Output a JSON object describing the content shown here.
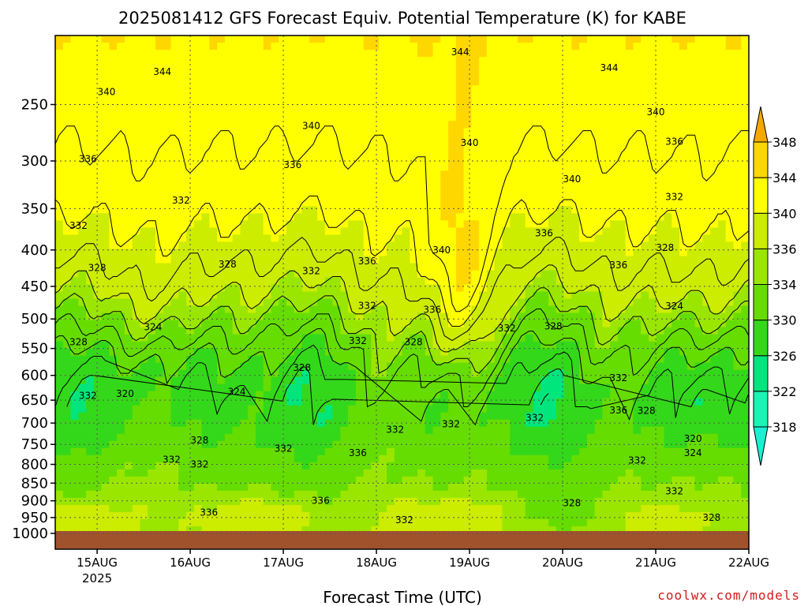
{
  "chart_data": {
    "type": "heatmap",
    "title": "2025081412 GFS Forecast Equiv. Potential Temperature (K) for KABE",
    "xlabel": "Forecast Time (UTC)",
    "ylabel": "",
    "y_log_pressure": true,
    "y_range_hpa": [
      1000,
      200
    ],
    "y_ticks": [
      "250",
      "300",
      "350",
      "400",
      "450",
      "500",
      "550",
      "600",
      "650",
      "700",
      "750",
      "800",
      "850",
      "900",
      "950",
      "1000"
    ],
    "x_range_days": [
      14.55,
      22.0
    ],
    "x_ticks": [
      {
        "day": 15,
        "label": "15AUG",
        "sub": "2025"
      },
      {
        "day": 16,
        "label": "16AUG",
        "sub": ""
      },
      {
        "day": 17,
        "label": "17AUG",
        "sub": ""
      },
      {
        "day": 18,
        "label": "18AUG",
        "sub": ""
      },
      {
        "day": 19,
        "label": "19AUG",
        "sub": ""
      },
      {
        "day": 20,
        "label": "20AUG",
        "sub": ""
      },
      {
        "day": 21,
        "label": "21AUG",
        "sub": ""
      },
      {
        "day": 22,
        "label": "22AUG",
        "sub": ""
      }
    ],
    "grid": true,
    "colorbar": {
      "levels": [
        "318",
        "322",
        "326",
        "330",
        "334",
        "336",
        "340",
        "344",
        "348"
      ],
      "colors": [
        "#19f5b4",
        "#00e67d",
        "#34d81a",
        "#66dd00",
        "#9ae600",
        "#ccec00",
        "#ffff00",
        "#ffd700",
        "#f5a800"
      ]
    },
    "contour_labels": [
      {
        "day": 15.7,
        "p": 225,
        "v": "344"
      },
      {
        "day": 18.9,
        "p": 211,
        "v": "344"
      },
      {
        "day": 20.5,
        "p": 222,
        "v": "344"
      },
      {
        "day": 15.1,
        "p": 240,
        "v": "340"
      },
      {
        "day": 17.3,
        "p": 268,
        "v": "340"
      },
      {
        "day": 19.0,
        "p": 283,
        "v": "340"
      },
      {
        "day": 21.0,
        "p": 256,
        "v": "340"
      },
      {
        "day": 20.1,
        "p": 318,
        "v": "340"
      },
      {
        "day": 18.7,
        "p": 400,
        "v": "340"
      },
      {
        "day": 14.9,
        "p": 298,
        "v": "336"
      },
      {
        "day": 17.1,
        "p": 304,
        "v": "336"
      },
      {
        "day": 21.2,
        "p": 282,
        "v": "336"
      },
      {
        "day": 19.8,
        "p": 379,
        "v": "336"
      },
      {
        "day": 17.9,
        "p": 415,
        "v": "336"
      },
      {
        "day": 20.6,
        "p": 420,
        "v": "336"
      },
      {
        "day": 18.6,
        "p": 485,
        "v": "336"
      },
      {
        "day": 20.6,
        "p": 672,
        "v": "336"
      },
      {
        "day": 15.9,
        "p": 341,
        "v": "332"
      },
      {
        "day": 14.8,
        "p": 370,
        "v": "332"
      },
      {
        "day": 21.2,
        "p": 337,
        "v": "332"
      },
      {
        "day": 17.3,
        "p": 428,
        "v": "332"
      },
      {
        "day": 17.9,
        "p": 479,
        "v": "332"
      },
      {
        "day": 17.8,
        "p": 537,
        "v": "332"
      },
      {
        "day": 19.4,
        "p": 515,
        "v": "332"
      },
      {
        "day": 14.9,
        "p": 641,
        "v": "332"
      },
      {
        "day": 20.6,
        "p": 605,
        "v": "332"
      },
      {
        "day": 19.7,
        "p": 688,
        "v": "332"
      },
      {
        "day": 18.2,
        "p": 715,
        "v": "332"
      },
      {
        "day": 18.8,
        "p": 702,
        "v": "332"
      },
      {
        "day": 17.0,
        "p": 760,
        "v": "332"
      },
      {
        "day": 15.8,
        "p": 788,
        "v": "332"
      },
      {
        "day": 16.1,
        "p": 800,
        "v": "332"
      },
      {
        "day": 20.8,
        "p": 790,
        "v": "332"
      },
      {
        "day": 21.2,
        "p": 872,
        "v": "332"
      },
      {
        "day": 18.3,
        "p": 957,
        "v": "332"
      },
      {
        "day": 15.0,
        "p": 424,
        "v": "328"
      },
      {
        "day": 16.4,
        "p": 419,
        "v": "328"
      },
      {
        "day": 21.1,
        "p": 397,
        "v": "328"
      },
      {
        "day": 18.4,
        "p": 539,
        "v": "328"
      },
      {
        "day": 19.9,
        "p": 512,
        "v": "328"
      },
      {
        "day": 17.2,
        "p": 585,
        "v": "328"
      },
      {
        "day": 14.8,
        "p": 539,
        "v": "328"
      },
      {
        "day": 16.1,
        "p": 740,
        "v": "328"
      },
      {
        "day": 20.9,
        "p": 673,
        "v": "328"
      },
      {
        "day": 20.1,
        "p": 907,
        "v": "328"
      },
      {
        "day": 21.6,
        "p": 950,
        "v": "328"
      },
      {
        "day": 15.6,
        "p": 513,
        "v": "324"
      },
      {
        "day": 16.5,
        "p": 633,
        "v": "324"
      },
      {
        "day": 21.2,
        "p": 480,
        "v": "324"
      },
      {
        "day": 21.4,
        "p": 771,
        "v": "324"
      },
      {
        "day": 15.3,
        "p": 637,
        "v": "320"
      },
      {
        "day": 21.4,
        "p": 736,
        "v": "320"
      },
      {
        "day": 16.2,
        "p": 935,
        "v": "336"
      },
      {
        "day": 17.4,
        "p": 899,
        "v": "336"
      },
      {
        "day": 17.8,
        "p": 771,
        "v": "336"
      }
    ]
  },
  "credit": "coolwx.com/models"
}
